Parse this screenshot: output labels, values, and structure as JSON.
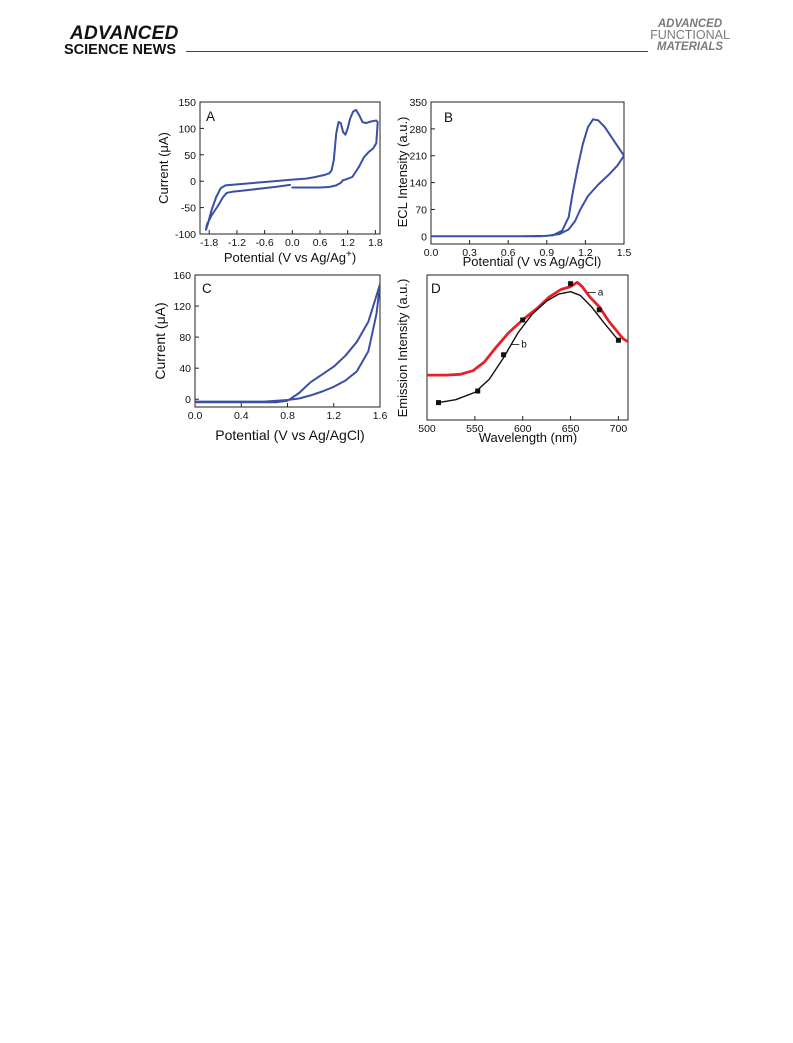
{
  "header": {
    "journal_left_line1": "ADVANCED",
    "journal_left_line2": "SCIENCE NEWS",
    "journal_right_line1": "ADVANCED",
    "journal_right_line2": "FUNCTIONAL",
    "journal_right_line3": "MATERIALS"
  },
  "colors": {
    "cv_blue": "#3a4fa6",
    "emission_red": "#e8202a",
    "fit_black": "#111111",
    "axis": "#222222"
  },
  "chart_data": [
    {
      "panel": "A",
      "type": "line",
      "xlabel": "Potential (V vs Ag/Ag",
      "xlabel_sup": "+",
      "xlabel_tail": ")",
      "ylabel": "Current (μA)",
      "xlim": [
        -2.0,
        1.9
      ],
      "ylim": [
        -100,
        150
      ],
      "xticks": [
        -1.8,
        -1.2,
        -0.6,
        0.0,
        0.6,
        1.2,
        1.8
      ],
      "xtick_labels": [
        "-1.8",
        "-1.2",
        "-0.6",
        "0.0",
        "0.6",
        "1.2",
        "1.8"
      ],
      "yticks": [
        -100,
        -50,
        0,
        50,
        100,
        150
      ],
      "ytick_labels": [
        "-100",
        "-50",
        "0",
        "50",
        "100",
        "150"
      ],
      "series": [
        {
          "points": [
            [
              0.0,
              -12
            ],
            [
              0.3,
              -12
            ],
            [
              0.6,
              -12
            ],
            [
              0.8,
              -11
            ],
            [
              0.95,
              -8
            ],
            [
              1.05,
              -3
            ],
            [
              1.1,
              2
            ],
            [
              1.15,
              3
            ],
            [
              1.3,
              8
            ],
            [
              1.45,
              28
            ],
            [
              1.55,
              45
            ],
            [
              1.65,
              55
            ],
            [
              1.75,
              62
            ],
            [
              1.82,
              72
            ],
            [
              1.85,
              112
            ],
            [
              1.82,
              115
            ],
            [
              1.7,
              113
            ],
            [
              1.6,
              110
            ],
            [
              1.52,
              112
            ],
            [
              1.45,
              125
            ],
            [
              1.38,
              135
            ],
            [
              1.32,
              132
            ],
            [
              1.25,
              118
            ],
            [
              1.2,
              100
            ],
            [
              1.15,
              88
            ],
            [
              1.1,
              93
            ],
            [
              1.05,
              110
            ],
            [
              1.0,
              112
            ],
            [
              0.95,
              90
            ],
            [
              0.9,
              40
            ],
            [
              0.85,
              20
            ],
            [
              0.8,
              15
            ],
            [
              0.7,
              12
            ],
            [
              0.5,
              8
            ],
            [
              0.3,
              5
            ],
            [
              0.0,
              3
            ],
            [
              -0.4,
              0
            ],
            [
              -0.8,
              -3
            ],
            [
              -1.2,
              -6
            ],
            [
              -1.45,
              -8
            ],
            [
              -1.55,
              -13
            ],
            [
              -1.65,
              -30
            ],
            [
              -1.75,
              -55
            ],
            [
              -1.82,
              -78
            ],
            [
              -1.87,
              -92
            ],
            [
              -1.85,
              -82
            ],
            [
              -1.75,
              -65
            ],
            [
              -1.6,
              -45
            ],
            [
              -1.5,
              -30
            ],
            [
              -1.42,
              -22
            ],
            [
              -1.3,
              -20
            ],
            [
              -1.0,
              -17
            ],
            [
              -0.6,
              -13
            ],
            [
              -0.3,
              -10
            ],
            [
              -0.05,
              -7
            ]
          ]
        }
      ]
    },
    {
      "panel": "B",
      "type": "line",
      "xlabel": "Potential (V vs Ag/AgCl)",
      "ylabel": "ECL Intensity (a.u.)",
      "xlim": [
        0.0,
        1.5
      ],
      "ylim": [
        -20,
        350
      ],
      "xticks": [
        0.0,
        0.3,
        0.6,
        0.9,
        1.2,
        1.5
      ],
      "xtick_labels": [
        "0.0",
        "0.3",
        "0.6",
        "0.9",
        "1.2",
        "1.5"
      ],
      "yticks": [
        0,
        70,
        140,
        210,
        280,
        350
      ],
      "ytick_labels": [
        "0",
        "70",
        "140",
        "210",
        "280",
        "350"
      ],
      "series": [
        {
          "points": [
            [
              0.0,
              0
            ],
            [
              0.3,
              0
            ],
            [
              0.6,
              0
            ],
            [
              0.85,
              0
            ],
            [
              0.95,
              3
            ],
            [
              1.02,
              15
            ],
            [
              1.07,
              50
            ],
            [
              1.1,
              110
            ],
            [
              1.14,
              180
            ],
            [
              1.18,
              240
            ],
            [
              1.22,
              285
            ],
            [
              1.26,
              305
            ],
            [
              1.3,
              302
            ],
            [
              1.35,
              285
            ],
            [
              1.42,
              250
            ],
            [
              1.5,
              210
            ],
            [
              1.45,
              185
            ],
            [
              1.38,
              160
            ],
            [
              1.3,
              135
            ],
            [
              1.22,
              105
            ],
            [
              1.16,
              70
            ],
            [
              1.12,
              40
            ],
            [
              1.07,
              18
            ],
            [
              1.0,
              6
            ],
            [
              0.9,
              1
            ],
            [
              0.7,
              0
            ],
            [
              0.0,
              0
            ]
          ]
        }
      ]
    },
    {
      "panel": "C",
      "type": "line",
      "xlabel": "Potential (V vs Ag/AgCl)",
      "ylabel": "Current (μA)",
      "xlim": [
        0.0,
        1.6
      ],
      "ylim": [
        -10,
        160
      ],
      "xticks": [
        0.0,
        0.4,
        0.8,
        1.2,
        1.6
      ],
      "xtick_labels": [
        "0.0",
        "0.4",
        "0.8",
        "1.2",
        "1.6"
      ],
      "yticks": [
        0,
        40,
        80,
        120,
        160
      ],
      "ytick_labels": [
        "0",
        "40",
        "80",
        "120",
        "160"
      ],
      "series": [
        {
          "points": [
            [
              0.0,
              -4
            ],
            [
              0.4,
              -4
            ],
            [
              0.7,
              -4
            ],
            [
              0.8,
              -2
            ],
            [
              0.9,
              8
            ],
            [
              1.0,
              22
            ],
            [
              1.1,
              32
            ],
            [
              1.2,
              42
            ],
            [
              1.3,
              56
            ],
            [
              1.4,
              74
            ],
            [
              1.5,
              100
            ],
            [
              1.6,
              148
            ],
            [
              1.57,
              110
            ],
            [
              1.5,
              62
            ],
            [
              1.4,
              36
            ],
            [
              1.3,
              24
            ],
            [
              1.2,
              16
            ],
            [
              1.1,
              10
            ],
            [
              1.0,
              5
            ],
            [
              0.9,
              1
            ],
            [
              0.8,
              -1
            ],
            [
              0.6,
              -3
            ],
            [
              0.3,
              -3
            ],
            [
              0.0,
              -3
            ]
          ]
        }
      ]
    },
    {
      "panel": "D",
      "type": "line",
      "xlabel": "Wavelength (nm)",
      "ylabel": "Emission Intensity (a.u.)",
      "xlim": [
        500,
        710
      ],
      "ylim": [
        0,
        1
      ],
      "xticks": [
        500,
        550,
        600,
        650,
        700
      ],
      "xtick_labels": [
        "500",
        "550",
        "600",
        "650",
        "700"
      ],
      "series": [
        {
          "name": "a",
          "color": "red",
          "points": [
            [
              500,
              0.31
            ],
            [
              520,
              0.31
            ],
            [
              535,
              0.315
            ],
            [
              548,
              0.34
            ],
            [
              560,
              0.4
            ],
            [
              572,
              0.5
            ],
            [
              585,
              0.6
            ],
            [
              600,
              0.69
            ],
            [
              615,
              0.77
            ],
            [
              628,
              0.85
            ],
            [
              640,
              0.9
            ],
            [
              650,
              0.92
            ],
            [
              657,
              0.95
            ],
            [
              662,
              0.92
            ],
            [
              670,
              0.85
            ],
            [
              680,
              0.78
            ],
            [
              690,
              0.68
            ],
            [
              700,
              0.6
            ],
            [
              705,
              0.56
            ],
            [
              710,
              0.54
            ]
          ]
        },
        {
          "name": "b",
          "color": "black",
          "points": [
            [
              512,
              0.12
            ],
            [
              530,
              0.14
            ],
            [
              550,
              0.19
            ],
            [
              565,
              0.28
            ],
            [
              580,
              0.43
            ],
            [
              595,
              0.6
            ],
            [
              610,
              0.73
            ],
            [
              625,
              0.82
            ],
            [
              638,
              0.87
            ],
            [
              650,
              0.885
            ],
            [
              660,
              0.86
            ],
            [
              672,
              0.78
            ],
            [
              685,
              0.67
            ],
            [
              700,
              0.55
            ]
          ]
        }
      ],
      "markers_b": [
        [
          512,
          0.12
        ],
        [
          553,
          0.2
        ],
        [
          580,
          0.45
        ],
        [
          600,
          0.69
        ],
        [
          650,
          0.94
        ],
        [
          680,
          0.76
        ],
        [
          700,
          0.55
        ]
      ],
      "labels": {
        "a": "a",
        "b": "b"
      }
    }
  ],
  "panel_labels": [
    "A",
    "B",
    "C",
    "D"
  ]
}
